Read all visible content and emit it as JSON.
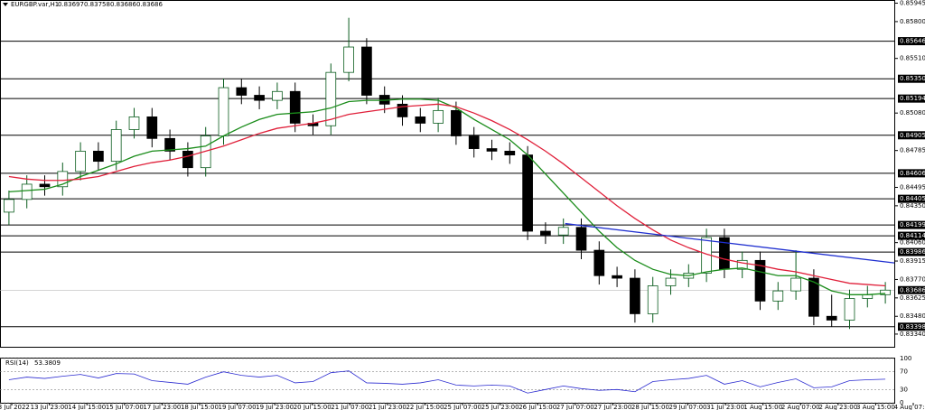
{
  "chart_data": {
    "type": "candlestick",
    "title": "EURGBP.var,H1",
    "ohlc": [
      0.83697,
      0.83758,
      0.83686,
      0.83686
    ],
    "up_color": "#0b5d1e",
    "down_color": "#000000",
    "xlim": [
      0,
      50
    ],
    "ylim": [
      0.8324,
      0.8597
    ],
    "yticks": [
      {
        "value": 0.85945,
        "label": "0.85945"
      },
      {
        "value": 0.858,
        "label": "0.85800"
      },
      {
        "value": 0.8551,
        "label": "0.85510"
      },
      {
        "value": 0.8508,
        "label": "0.85080"
      },
      {
        "value": 0.84785,
        "label": "0.84785"
      },
      {
        "value": 0.84495,
        "label": "0.84495"
      },
      {
        "value": 0.8435,
        "label": "0.84350"
      },
      {
        "value": 0.8406,
        "label": "0.84060"
      },
      {
        "value": 0.83915,
        "label": "0.83915"
      },
      {
        "value": 0.8377,
        "label": "0.83770"
      },
      {
        "value": 0.83625,
        "label": "0.83625"
      },
      {
        "value": 0.8348,
        "label": "0.83480"
      },
      {
        "value": 0.8334,
        "label": "0.83340"
      }
    ],
    "xticks": [
      {
        "value": 0.66,
        "label": "13 Jul 2022"
      },
      {
        "value": 2.76,
        "label": "13 Jul 23:00"
      },
      {
        "value": 4.86,
        "label": "14 Jul 15:00"
      },
      {
        "value": 6.96,
        "label": "15 Jul 07:00"
      },
      {
        "value": 9.06,
        "label": "17 Jul 23:00"
      },
      {
        "value": 11.16,
        "label": "18 Jul 15:00"
      },
      {
        "value": 13.26,
        "label": "19 Jul 07:00"
      },
      {
        "value": 15.36,
        "label": "19 Jul 23:00"
      },
      {
        "value": 17.46,
        "label": "20 Jul 15:00"
      },
      {
        "value": 19.56,
        "label": "21 Jul 07:00"
      },
      {
        "value": 21.66,
        "label": "21 Jul 23:00"
      },
      {
        "value": 23.76,
        "label": "22 Jul 15:00"
      },
      {
        "value": 25.86,
        "label": "25 Jul 07:00"
      },
      {
        "value": 27.96,
        "label": "25 Jul 23:00"
      },
      {
        "value": 30.06,
        "label": "26 Jul 15:00"
      },
      {
        "value": 32.16,
        "label": "27 Jul 07:00"
      },
      {
        "value": 34.26,
        "label": "27 Jul 23:00"
      },
      {
        "value": 36.36,
        "label": "28 Jul 15:00"
      },
      {
        "value": 38.46,
        "label": "29 Jul 07:00"
      },
      {
        "value": 40.56,
        "label": "31 Jul 23:00"
      },
      {
        "value": 42.66,
        "label": "1 Aug 15:00"
      },
      {
        "value": 44.76,
        "label": "2 Aug 07:00"
      },
      {
        "value": 46.86,
        "label": "2 Aug 23:00"
      },
      {
        "value": 48.96,
        "label": "3 Aug 15:00"
      },
      {
        "value": 51.06,
        "label": "4 Aug 07:00"
      }
    ],
    "open": [
      0.843,
      0.844,
      0.8452,
      0.845,
      0.8462,
      0.8478,
      0.847,
      0.8495,
      0.8505,
      0.8488,
      0.8478,
      0.8465,
      0.849,
      0.8528,
      0.8522,
      0.8518,
      0.8525,
      0.85,
      0.8498,
      0.854,
      0.856,
      0.8522,
      0.8515,
      0.8505,
      0.85,
      0.851,
      0.849,
      0.848,
      0.8478,
      0.8475,
      0.8415,
      0.8412,
      0.8418,
      0.84,
      0.838,
      0.8378,
      0.835,
      0.8372,
      0.8378,
      0.8382,
      0.841,
      0.8385,
      0.8392,
      0.836,
      0.8368,
      0.8378,
      0.8348,
      0.8345,
      0.8362,
      0.8365
    ],
    "high": [
      0.8447,
      0.8459,
      0.8459,
      0.8469,
      0.8485,
      0.8485,
      0.8502,
      0.8512,
      0.8512,
      0.8495,
      0.8485,
      0.8497,
      0.8535,
      0.8535,
      0.8529,
      0.8532,
      0.8532,
      0.8507,
      0.8547,
      0.8583,
      0.8567,
      0.8529,
      0.8522,
      0.8512,
      0.852,
      0.8517,
      0.8497,
      0.8487,
      0.8485,
      0.8482,
      0.8422,
      0.8425,
      0.8425,
      0.8407,
      0.8387,
      0.8385,
      0.8379,
      0.8385,
      0.8389,
      0.8417,
      0.8417,
      0.8399,
      0.8399,
      0.8375,
      0.84,
      0.8385,
      0.8365,
      0.8369,
      0.8372,
      0.8375
    ],
    "low": [
      0.842,
      0.8433,
      0.8443,
      0.8443,
      0.8455,
      0.8463,
      0.8463,
      0.8488,
      0.8481,
      0.8471,
      0.8458,
      0.8458,
      0.8483,
      0.8515,
      0.8511,
      0.8511,
      0.8493,
      0.8491,
      0.8491,
      0.8533,
      0.8515,
      0.8508,
      0.8498,
      0.8493,
      0.8493,
      0.8483,
      0.8473,
      0.8471,
      0.8468,
      0.8408,
      0.8405,
      0.8405,
      0.8393,
      0.8373,
      0.8371,
      0.8343,
      0.8343,
      0.8365,
      0.8371,
      0.8375,
      0.8378,
      0.8378,
      0.8353,
      0.8353,
      0.8361,
      0.8341,
      0.834,
      0.8338,
      0.8355,
      0.8358
    ],
    "close": [
      0.844,
      0.8452,
      0.845,
      0.8462,
      0.8478,
      0.847,
      0.8495,
      0.8505,
      0.8488,
      0.8478,
      0.8465,
      0.849,
      0.8528,
      0.8522,
      0.8518,
      0.8525,
      0.85,
      0.8498,
      0.854,
      0.856,
      0.8522,
      0.8515,
      0.8505,
      0.85,
      0.851,
      0.849,
      0.848,
      0.8478,
      0.8475,
      0.8415,
      0.8412,
      0.8418,
      0.84,
      0.838,
      0.8378,
      0.835,
      0.8372,
      0.8378,
      0.8382,
      0.841,
      0.8385,
      0.8392,
      0.836,
      0.8368,
      0.8378,
      0.8348,
      0.8345,
      0.8362,
      0.8365,
      0.83686
    ],
    "series": [
      {
        "color": "#1a8c1a",
        "values": [
          0.8446,
          0.8447,
          0.8448,
          0.8452,
          0.8458,
          0.8463,
          0.8468,
          0.8474,
          0.8478,
          0.8479,
          0.848,
          0.8482,
          0.849,
          0.8497,
          0.8503,
          0.8507,
          0.8508,
          0.8509,
          0.8512,
          0.8517,
          0.8518,
          0.8518,
          0.8519,
          0.8519,
          0.8518,
          0.8512,
          0.8503,
          0.8495,
          0.8487,
          0.8475,
          0.846,
          0.8445,
          0.843,
          0.8415,
          0.8402,
          0.8392,
          0.8385,
          0.8381,
          0.838,
          0.8383,
          0.8385,
          0.8386,
          0.8383,
          0.838,
          0.838,
          0.8375,
          0.8368,
          0.8365,
          0.8365,
          0.8366
        ]
      },
      {
        "color": "#e0203a",
        "values": [
          0.8458,
          0.8456,
          0.8455,
          0.8455,
          0.8456,
          0.8458,
          0.8462,
          0.8466,
          0.8469,
          0.8471,
          0.8474,
          0.8478,
          0.8482,
          0.8487,
          0.8492,
          0.8496,
          0.8498,
          0.85,
          0.8503,
          0.8507,
          0.8509,
          0.8511,
          0.8513,
          0.8514,
          0.8515,
          0.8513,
          0.8508,
          0.8502,
          0.8495,
          0.8487,
          0.8478,
          0.8468,
          0.8457,
          0.8446,
          0.8435,
          0.8425,
          0.8416,
          0.8408,
          0.8402,
          0.8397,
          0.8393,
          0.839,
          0.8388,
          0.8385,
          0.8383,
          0.838,
          0.8377,
          0.8374,
          0.8373,
          0.8372
        ]
      }
    ],
    "trendline": {
      "color": "#1f2fd0",
      "x": [
        31.6,
        50
      ],
      "values": [
        0.8421,
        0.839
      ]
    },
    "levels": [
      {
        "value": 0.85646,
        "label": "0.85646"
      },
      {
        "value": 0.8535,
        "label": "0.85350"
      },
      {
        "value": 0.85194,
        "label": "0.85194"
      },
      {
        "value": 0.84905,
        "label": "0.84905"
      },
      {
        "value": 0.84606,
        "label": "0.84606"
      },
      {
        "value": 0.84405,
        "label": "0.84405"
      },
      {
        "value": 0.84199,
        "label": "0.84199"
      },
      {
        "value": 0.84114,
        "label": "0.84114"
      },
      {
        "value": 0.83986,
        "label": "0.83986"
      },
      {
        "value": 0.83398,
        "label": "0.83398"
      }
    ],
    "last_price": 0.83686,
    "rsi": {
      "name": "RSI(14)",
      "last": 53.3809,
      "color": "#2a2ad0",
      "ylim": [
        0,
        100
      ],
      "yticks": [
        100,
        70,
        30,
        0
      ],
      "values": [
        52,
        58,
        55,
        60,
        64,
        56,
        66,
        65,
        50,
        46,
        42,
        58,
        70,
        62,
        58,
        62,
        45,
        48,
        68,
        72,
        45,
        44,
        42,
        45,
        52,
        40,
        38,
        40,
        38,
        22,
        30,
        38,
        32,
        28,
        30,
        25,
        48,
        52,
        55,
        62,
        42,
        50,
        36,
        46,
        54,
        34,
        36,
        50,
        52,
        53.3809
      ]
    }
  }
}
